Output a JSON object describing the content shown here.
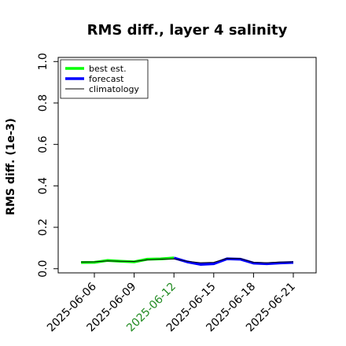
{
  "chart_data": {
    "type": "line",
    "title": "RMS diff., layer 4 salinity",
    "xlabel": "",
    "ylabel": "RMS diff. (1e-3)",
    "ylim": [
      -0.02,
      1.02
    ],
    "yticks": [
      "0.0",
      "0.2",
      "0.4",
      "0.6",
      "0.8",
      "1.0"
    ],
    "xticks": [
      "2025-06-06",
      "2025-06-09",
      "2025-06-12",
      "2025-06-15",
      "2025-06-18",
      "2025-06-21"
    ],
    "highlight_tick": "2025-06-12",
    "highlight_color": "#228b22",
    "grid": false,
    "legend_position": "upper-left",
    "series": [
      {
        "name": "best est.",
        "color": "#00ff00",
        "x": [
          "2025-06-05",
          "2025-06-06",
          "2025-06-07",
          "2025-06-08",
          "2025-06-09",
          "2025-06-10",
          "2025-06-11",
          "2025-06-12"
        ],
        "values": [
          0.03,
          0.031,
          0.04,
          0.036,
          0.033,
          0.046,
          0.047,
          0.052
        ]
      },
      {
        "name": "forecast",
        "color": "#0000ff",
        "x": [
          "2025-06-12",
          "2025-06-13",
          "2025-06-14",
          "2025-06-15",
          "2025-06-16",
          "2025-06-17",
          "2025-06-18",
          "2025-06-19",
          "2025-06-20",
          "2025-06-21"
        ],
        "values": [
          0.052,
          0.033,
          0.021,
          0.024,
          0.048,
          0.046,
          0.027,
          0.024,
          0.028,
          0.03
        ]
      },
      {
        "name": "climatology",
        "color": "#000000",
        "x": [
          "2025-06-05",
          "2025-06-06",
          "2025-06-07",
          "2025-06-08",
          "2025-06-09",
          "2025-06-10",
          "2025-06-11",
          "2025-06-12",
          "2025-06-13",
          "2025-06-14",
          "2025-06-15",
          "2025-06-16",
          "2025-06-17",
          "2025-06-18",
          "2025-06-19",
          "2025-06-20",
          "2025-06-21"
        ],
        "values": [
          0.032,
          0.033,
          0.038,
          0.036,
          0.035,
          0.043,
          0.046,
          0.047,
          0.036,
          0.029,
          0.031,
          0.05,
          0.049,
          0.031,
          0.029,
          0.032,
          0.033
        ]
      }
    ]
  }
}
